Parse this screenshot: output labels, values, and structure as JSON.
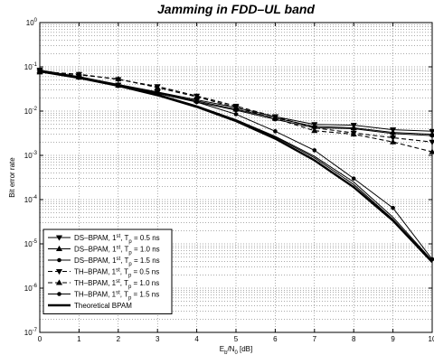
{
  "chart_data": {
    "type": "line",
    "title": "Jamming in FDD–UL band",
    "ylabel": "Bit error rate",
    "xlabel_parts": {
      "base": "E",
      "sub1": "b",
      "mid": "/N",
      "sub2": "0",
      "tail": " [dB]"
    },
    "x": [
      0,
      1,
      2,
      3,
      4,
      5,
      6,
      7,
      8,
      9,
      10
    ],
    "xlim": [
      0,
      10
    ],
    "ylim": [
      1e-07,
      1
    ],
    "yscale": "log",
    "grid": true,
    "legend_position": "bottom-left",
    "xtick_labels": [
      "0",
      "1",
      "2",
      "3",
      "4",
      "5",
      "6",
      "7",
      "8",
      "9",
      "10"
    ],
    "ytick_labels": [
      {
        "base": "10",
        "exp": "-7",
        "value": 1e-07
      },
      {
        "base": "10",
        "exp": "-6",
        "value": 1e-06
      },
      {
        "base": "10",
        "exp": "-5",
        "value": 1e-05
      },
      {
        "base": "10",
        "exp": "-4",
        "value": 0.0001
      },
      {
        "base": "10",
        "exp": "-3",
        "value": 0.001
      },
      {
        "base": "10",
        "exp": "-2",
        "value": 0.01
      },
      {
        "base": "10",
        "exp": "-1",
        "value": 0.1
      },
      {
        "base": "10",
        "exp": "0",
        "value": 1
      }
    ],
    "series": [
      {
        "name": "DS–BPAM, 1st, Tp = 0.5 ns",
        "legend": {
          "pre": "DS–BPAM, 1",
          "sup": "st",
          "mid": ", T",
          "sub": "p",
          "post": " = 0.5 ns"
        },
        "marker": "tri-down",
        "style": "solid",
        "values": [
          0.085,
          0.06,
          0.039,
          0.027,
          0.018,
          0.012,
          0.0075,
          0.005,
          0.0048,
          0.0038,
          0.0035
        ]
      },
      {
        "name": "DS–BPAM, 1st, Tp = 1.0 ns",
        "legend": {
          "pre": "DS–BPAM, 1",
          "sup": "st",
          "mid": ", T",
          "sub": "p",
          "post": " = 1.0 ns"
        },
        "marker": "tri-up",
        "style": "solid",
        "values": [
          0.082,
          0.058,
          0.038,
          0.026,
          0.017,
          0.011,
          0.007,
          0.0045,
          0.0042,
          0.0033,
          0.003
        ]
      },
      {
        "name": "DS–BPAM, 1st, Tp = 1.5 ns",
        "legend": {
          "pre": "DS–BPAM, 1",
          "sup": "st",
          "mid": ", T",
          "sub": "p",
          "post": " = 1.5 ns"
        },
        "marker": "dot",
        "style": "solid",
        "values": [
          0.08,
          0.057,
          0.037,
          0.025,
          0.016,
          0.0105,
          0.0065,
          0.0042,
          0.004,
          0.0031,
          0.0028
        ]
      },
      {
        "name": "TH–BPAM, 1st, Tp = 0.5 ns",
        "legend": {
          "pre": "TH–BPAM, 1",
          "sup": "st",
          "mid": ", T",
          "sub": "p",
          "post": " = 0.5 ns"
        },
        "marker": "tri-down",
        "style": "dashed",
        "values": [
          0.078,
          0.068,
          0.052,
          0.036,
          0.022,
          0.013,
          0.0075,
          0.0042,
          0.0032,
          0.0025,
          0.002
        ]
      },
      {
        "name": "TH–BPAM, 1st, Tp = 1.0 ns",
        "legend": {
          "pre": "TH–BPAM, 1",
          "sup": "st",
          "mid": ", T",
          "sub": "p",
          "post": " = 1.0 ns"
        },
        "marker": "tri-up",
        "style": "dashed",
        "values": [
          0.076,
          0.066,
          0.053,
          0.034,
          0.021,
          0.012,
          0.0068,
          0.0036,
          0.003,
          0.002,
          0.0012
        ]
      },
      {
        "name": "TH–BPAM, 1st, Tp = 1.5 ns",
        "legend": {
          "pre": "TH–BPAM, 1",
          "sup": "st",
          "mid": ", T",
          "sub": "p",
          "post": " = 1.5 ns"
        },
        "marker": "dot",
        "style": "solid",
        "values": [
          0.08,
          0.06,
          0.04,
          0.027,
          0.016,
          0.0085,
          0.0035,
          0.0013,
          0.0003,
          6.5e-05,
          4.5e-06
        ]
      },
      {
        "name": "Theoretical BPAM",
        "legend": {
          "pre": "Theoretical BPAM",
          "sup": "",
          "mid": "",
          "sub": "",
          "post": ""
        },
        "marker": "none",
        "style": "thick",
        "values": [
          0.0786,
          0.0563,
          0.0375,
          0.0229,
          0.0125,
          0.00595,
          0.00239,
          0.000773,
          0.000191,
          3.36e-05,
          3.87e-06
        ]
      },
      {
        "name": "DS–BPAM 0.5 ns (lower branch)",
        "legend": null,
        "marker": "none",
        "style": "solid",
        "values": [
          0.079,
          0.057,
          0.038,
          0.024,
          0.0132,
          0.0064,
          0.0027,
          0.00095,
          0.00025,
          4e-05,
          4.2e-06
        ]
      },
      {
        "name": "TH–BPAM 0.5 ns (lower branch)",
        "legend": null,
        "marker": "none",
        "style": "solid",
        "values": [
          0.079,
          0.057,
          0.038,
          0.024,
          0.013,
          0.0062,
          0.0026,
          0.00088,
          0.00022,
          3.6e-05,
          4e-06
        ]
      }
    ]
  }
}
